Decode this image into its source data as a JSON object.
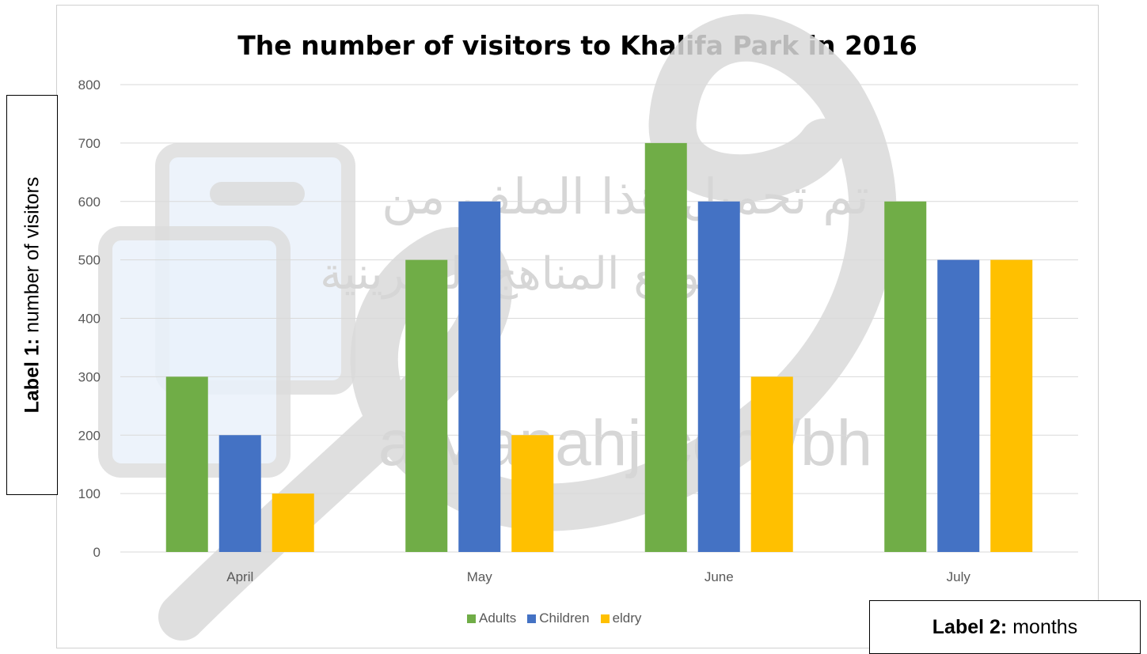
{
  "y_axis_box": {
    "bold": "Label 1:",
    "text": " number of visitors"
  },
  "x_axis_box": {
    "bold": "Label 2:",
    "text": " months"
  },
  "watermark": {
    "arabic_line1": "تم تحميل هذا الملف من",
    "arabic_line2": "موقع المناهج البحرينية",
    "url": "alManahj.com/bh"
  },
  "chart_data": {
    "type": "bar",
    "title": "The number of visitors to Khalifa Park in 2016",
    "categories": [
      "April",
      "May",
      "June",
      "July"
    ],
    "series": [
      {
        "name": "Adults",
        "values": [
          300,
          500,
          700,
          600
        ],
        "color": "#70ad47"
      },
      {
        "name": "Children",
        "values": [
          200,
          600,
          600,
          500
        ],
        "color": "#4472c4"
      },
      {
        "name": "eldry",
        "values": [
          100,
          200,
          300,
          500
        ],
        "color": "#ffc000"
      }
    ],
    "ylim": [
      0,
      800
    ],
    "yticks": [
      0,
      100,
      200,
      300,
      400,
      500,
      600,
      700,
      800
    ],
    "grid": true,
    "legend_position": "bottom"
  }
}
